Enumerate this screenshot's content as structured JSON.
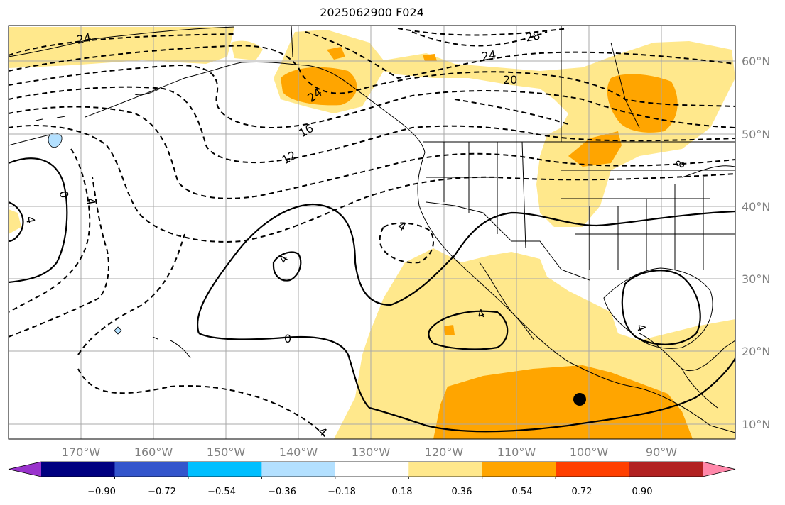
{
  "title": "2025062900 F024",
  "map": {
    "lon_labels": [
      "170°W",
      "160°W",
      "150°W",
      "140°W",
      "130°W",
      "120°W",
      "110°W",
      "100°W",
      "90°W"
    ],
    "lat_labels": [
      "60°N",
      "50°N",
      "40°N",
      "30°N",
      "20°N",
      "10°N"
    ],
    "contour_labels": [
      "24",
      "28",
      "24",
      "20",
      "24",
      "16",
      "12",
      "8",
      "0",
      "4",
      "4",
      "4",
      "0",
      "4",
      "4",
      "4",
      "4"
    ],
    "marker": "filled-circle"
  },
  "colorbar": {
    "ticks": [
      "−0.90",
      "−0.72",
      "−0.54",
      "−0.36",
      "−0.18",
      "0.18",
      "0.36",
      "0.54",
      "0.72",
      "0.90"
    ],
    "colors": [
      "#9933cc",
      "#000080",
      "#3355cc",
      "#00bfff",
      "#b3e0ff",
      "#ffffff",
      "#ffe88c",
      "#ffa500",
      "#ff3f00",
      "#b22222",
      "#ff88aa"
    ]
  }
}
